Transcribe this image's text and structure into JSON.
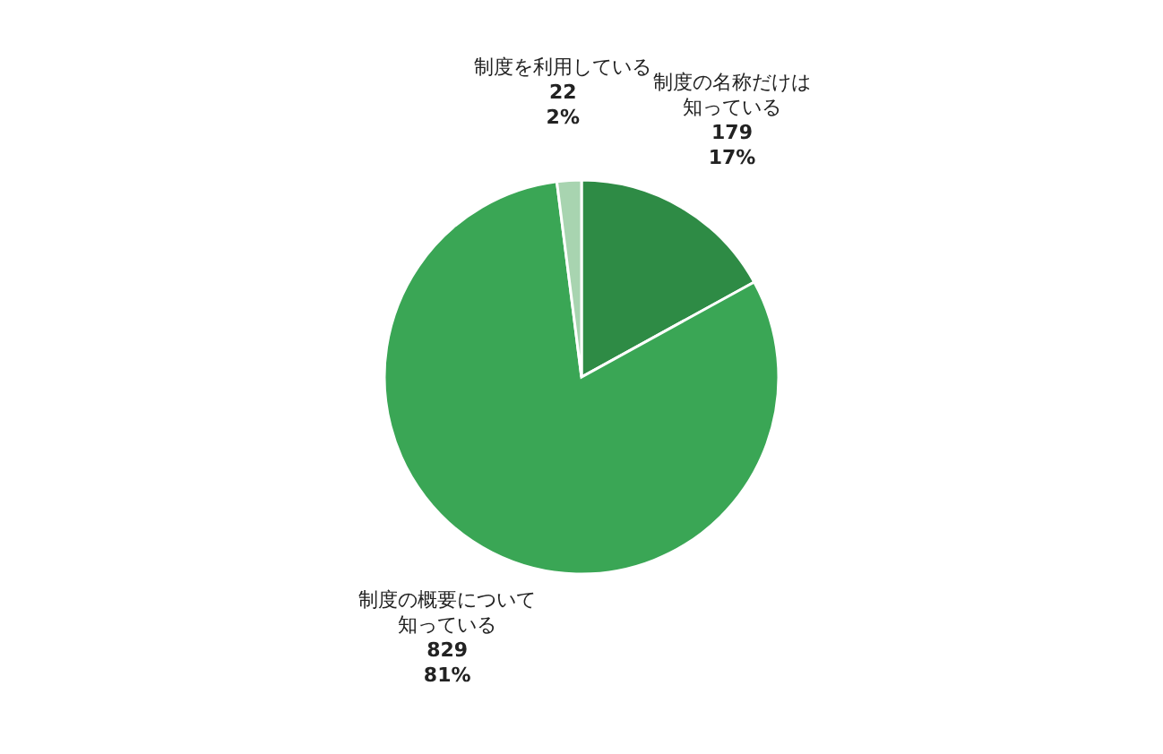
{
  "chart_data": {
    "type": "pie",
    "categories": [
      "制度の名称だけは知っている",
      "制度の概要について知っている",
      "制度を利用している"
    ],
    "values": [
      17,
      81,
      2
    ],
    "colors": [
      "#2e8b45",
      "#3aa655",
      "#a8d4b0"
    ],
    "value_labels": [
      "179\n17%",
      "829\n81%",
      "22\n2%"
    ],
    "legend": false
  }
}
